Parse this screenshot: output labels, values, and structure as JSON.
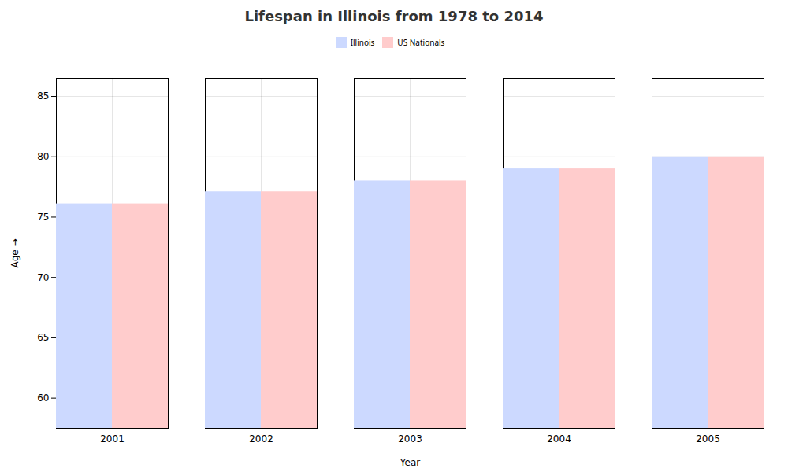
{
  "chart_data": {
    "type": "bar",
    "title": "Lifespan in Illinois from 1978 to 2014",
    "xlabel": "Year",
    "ylabel": "Age",
    "categories": [
      "2001",
      "2002",
      "2003",
      "2004",
      "2005"
    ],
    "series": [
      {
        "name": "Illinois",
        "color": "#ccd9ff",
        "values": [
          76.1,
          77.1,
          78.0,
          79.0,
          80.0
        ]
      },
      {
        "name": "US Nationals",
        "color": "#ffcccc",
        "values": [
          76.1,
          77.1,
          78.0,
          79.0,
          80.0
        ]
      }
    ],
    "ylim": [
      57.5,
      86.5
    ],
    "yticks": [
      60,
      65,
      70,
      75,
      80,
      85
    ],
    "grid": true,
    "legend": "top"
  }
}
